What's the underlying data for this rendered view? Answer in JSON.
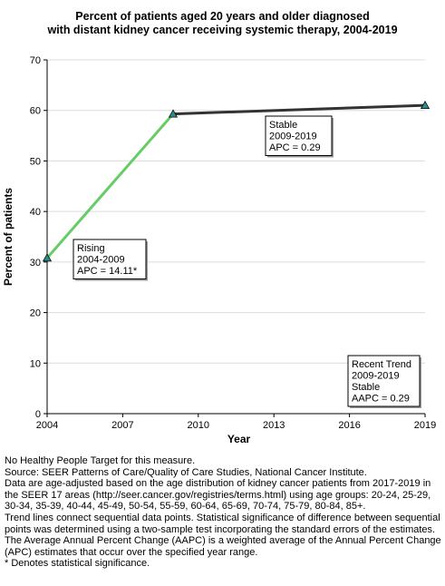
{
  "title_lines": [
    "Percent of patients aged 20 years and older diagnosed",
    "with distant kidney cancer receiving systemic therapy, 2004-2019"
  ],
  "chart_data": {
    "type": "line",
    "xlabel": "Year",
    "ylabel": "Percent of patients",
    "xlim": [
      2004,
      2019
    ],
    "ylim": [
      0,
      70
    ],
    "x_ticks": [
      2004,
      2007,
      2010,
      2013,
      2016,
      2019
    ],
    "y_ticks": [
      0,
      10,
      20,
      30,
      40,
      50,
      60,
      70
    ],
    "points": [
      {
        "x": 2004,
        "y": 30.8
      },
      {
        "x": 2009,
        "y": 59.3
      },
      {
        "x": 2019,
        "y": 61.0
      }
    ],
    "segments": [
      {
        "from": 2004,
        "to": 2009,
        "trend": "Rising",
        "color": "#66cc66",
        "label_lines": [
          "Rising",
          "2004-2009",
          "APC = 14.11*"
        ]
      },
      {
        "from": 2009,
        "to": 2019,
        "trend": "Stable",
        "color": "#333333",
        "label_lines": [
          "Stable",
          "2009-2019",
          "APC =  0.29"
        ]
      }
    ],
    "recent_trend_lines": [
      "Recent Trend",
      "2009-2019",
      "Stable",
      "AAPC =  0.29"
    ],
    "marker_color": "#2e8b8b",
    "grid": true
  },
  "notes": [
    "No Healthy People Target for this measure.",
    "Source: SEER Patterns of Care/Quality of Care Studies, National Cancer Institute.",
    "Data are age-adjusted based on the age distribution of kidney cancer patients from 2017-2019 in the SEER 17 areas (http://seer.cancer.gov/registries/terms.html) using age groups: 20-24, 25-29, 30-34, 35-39, 40-44, 45-49, 50-54, 55-59, 60-64, 65-69, 70-74, 75-79, 80-84, 85+.",
    "Trend lines connect sequential data points. Statistical significance of difference between sequential points was determined using a two-sample test incorporating the standard errors of the estimates.",
    "The Average Annual Percent Change (AAPC) is a weighted average of the Annual Percent Change (APC) estimates that occur over the specified year range.",
    "* Denotes statistical significance."
  ]
}
